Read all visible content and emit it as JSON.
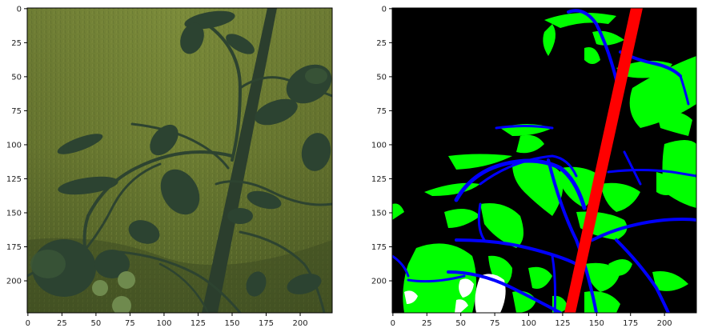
{
  "figure": {
    "panels": [
      {
        "id": "left",
        "kind": "photo",
        "description_colors": {
          "grass_light": "#7e8b3c",
          "grass_mid": "#6a7a32",
          "grass_dark": "#4c5d24",
          "plant_dark": "#26382b",
          "plant_leaf": "#2e4433",
          "plant_highlight": "#3c5238"
        },
        "xticks": [
          "0",
          "25",
          "50",
          "75",
          "100",
          "125",
          "150",
          "175",
          "200"
        ],
        "yticks": [
          "0",
          "25",
          "50",
          "75",
          "100",
          "125",
          "150",
          "175",
          "200"
        ]
      },
      {
        "id": "right",
        "kind": "segmentation",
        "class_colors": {
          "background": "#000000",
          "leaf": "#00ff00",
          "stem": "#0000ff",
          "stake": "#ff0000",
          "fruit": "#ffffff"
        },
        "xticks": [
          "0",
          "25",
          "50",
          "75",
          "100",
          "125",
          "150",
          "175",
          "200"
        ],
        "yticks": [
          "0",
          "25",
          "50",
          "75",
          "100",
          "125",
          "150",
          "175",
          "200"
        ]
      }
    ]
  }
}
